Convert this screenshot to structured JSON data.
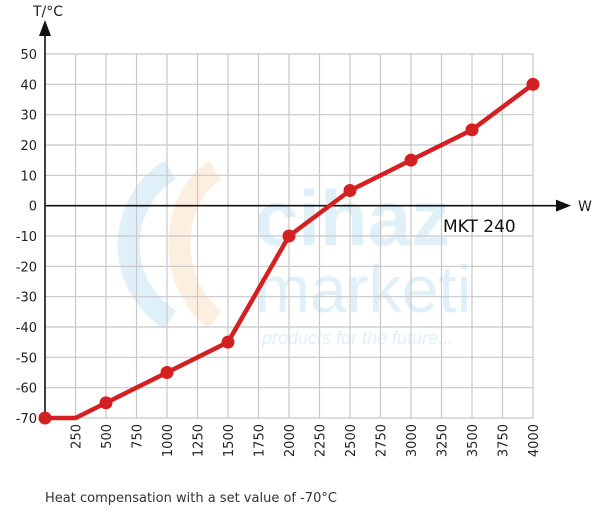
{
  "watermark": {
    "brand_line1": "cihaz",
    "brand_line2": "marketi",
    "tagline": "products for the future..."
  },
  "chart_data": {
    "type": "line",
    "title": "",
    "xlabel": "W",
    "ylabel": "T/°C",
    "annotation": "MKT 240",
    "xlim": [
      0,
      4000
    ],
    "ylim": [
      -70,
      50
    ],
    "x_ticks": [
      250,
      500,
      750,
      1000,
      1250,
      1500,
      1750,
      2000,
      2250,
      2500,
      2750,
      3000,
      3250,
      3500,
      3750,
      4000
    ],
    "y_ticks": [
      50,
      40,
      30,
      20,
      10,
      0,
      -10,
      -20,
      -30,
      -40,
      -50,
      -60,
      -70
    ],
    "grid": true,
    "line_color": "#d42020",
    "series": [
      {
        "x": [
          0,
          250,
          500,
          1000,
          1500,
          2000,
          2500,
          3000,
          3500,
          4000
        ],
        "y": [
          -70,
          -70,
          -65,
          -55,
          -45,
          -10,
          5,
          15,
          25,
          40
        ],
        "markers": [
          true,
          false,
          true,
          true,
          true,
          true,
          true,
          true,
          true,
          true
        ]
      }
    ]
  },
  "caption": "Heat compensation with a set value of -70°C"
}
